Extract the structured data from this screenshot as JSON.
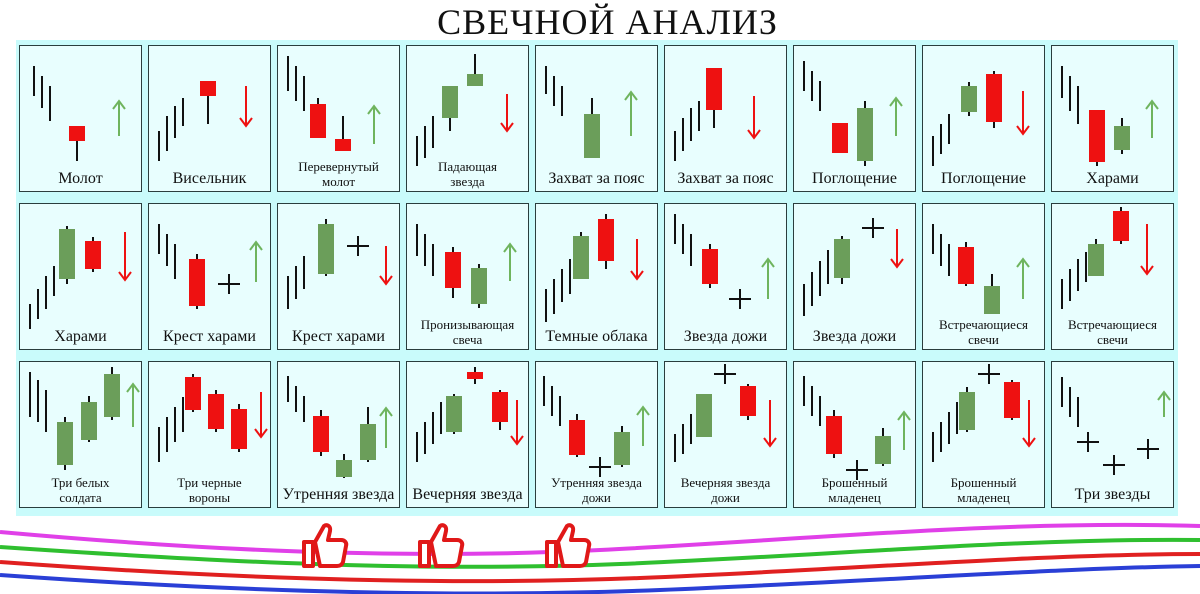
{
  "title": "СВЕЧНОЙ АНАЛИЗ",
  "colors": {
    "bull": "#6b9e5a",
    "bear": "#ee1111",
    "up_arrow": "#6fb45e",
    "down_arrow": "#ee1111",
    "wick": "#111111",
    "panel": "#c9fbfb",
    "cell": "#e8fefe"
  },
  "patterns": [
    {
      "label": [
        "Молот"
      ],
      "dir": "up"
    },
    {
      "label": [
        "Висельник"
      ],
      "dir": "down"
    },
    {
      "label": [
        "Перевернутый",
        "молот"
      ],
      "dir": "up"
    },
    {
      "label": [
        "Падающая",
        "звезда"
      ],
      "dir": "down"
    },
    {
      "label": [
        "Захват за пояс"
      ],
      "dir": "up"
    },
    {
      "label": [
        "Захват за пояс"
      ],
      "dir": "down"
    },
    {
      "label": [
        "Поглощение"
      ],
      "dir": "up"
    },
    {
      "label": [
        "Поглощение"
      ],
      "dir": "down"
    },
    {
      "label": [
        "Харами"
      ],
      "dir": "up"
    },
    {
      "label": [
        "Харами"
      ],
      "dir": "down"
    },
    {
      "label": [
        "Крест харами"
      ],
      "dir": "up"
    },
    {
      "label": [
        "Крест харами"
      ],
      "dir": "down"
    },
    {
      "label": [
        "Пронизывающая",
        "свеча"
      ],
      "dir": "up"
    },
    {
      "label": [
        "Темные облака"
      ],
      "dir": "down"
    },
    {
      "label": [
        "Звезда дожи"
      ],
      "dir": "up"
    },
    {
      "label": [
        "Звезда дожи"
      ],
      "dir": "down"
    },
    {
      "label": [
        "Встречающиеся",
        "свечи"
      ],
      "dir": "up"
    },
    {
      "label": [
        "Встречающиеся",
        "свечи"
      ],
      "dir": "down"
    },
    {
      "label": [
        "Три белых",
        "солдата"
      ],
      "dir": "up"
    },
    {
      "label": [
        "Три черные",
        "вороны"
      ],
      "dir": "down"
    },
    {
      "label": [
        "Утренняя звезда"
      ],
      "dir": "up"
    },
    {
      "label": [
        "Вечерняя  звезда"
      ],
      "dir": "down"
    },
    {
      "label": [
        "Утренняя звезда",
        "дожи"
      ],
      "dir": "up"
    },
    {
      "label": [
        "Вечерняя звезда",
        "дожи"
      ],
      "dir": "down"
    },
    {
      "label": [
        "Брошенный",
        "младенец"
      ],
      "dir": "up"
    },
    {
      "label": [
        "Брошенный",
        "младенец"
      ],
      "dir": "down"
    },
    {
      "label": [
        "Три звезды"
      ],
      "dir": "none"
    }
  ],
  "like_icon": "thumbs-up-icon"
}
